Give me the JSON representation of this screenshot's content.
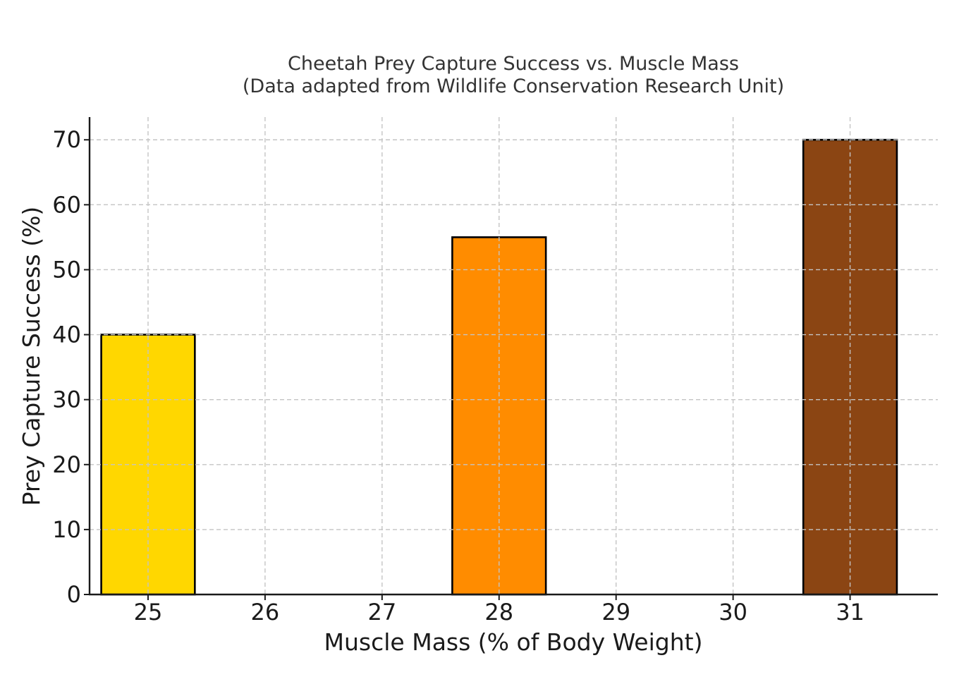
{
  "chart_data": {
    "type": "bar",
    "title": "Cheetah Prey Capture Success vs. Muscle Mass",
    "subtitle": "(Data adapted from Wildlife Conservation Research Unit)",
    "xlabel": "Muscle Mass (% of Body Weight)",
    "ylabel": "Prey Capture Success (%)",
    "x": [
      25,
      28,
      31
    ],
    "values": [
      40,
      55,
      70
    ],
    "colors": [
      "#FFD700",
      "#FF8C00",
      "#8B4513"
    ],
    "bar_width": 0.8,
    "xlim": [
      24.5,
      31.75
    ],
    "ylim": [
      0,
      73.5
    ],
    "xticks": [
      "25",
      "26",
      "27",
      "28",
      "29",
      "30",
      "31"
    ],
    "yticks": [
      "0",
      "10",
      "20",
      "30",
      "40",
      "50",
      "60",
      "70"
    ],
    "grid": true,
    "grid_style": "dashed"
  }
}
